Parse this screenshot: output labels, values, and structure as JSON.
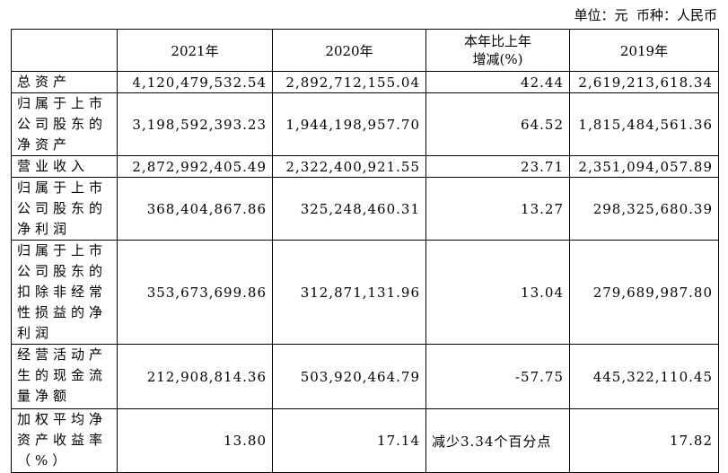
{
  "unit": "单位：元  币种：人民币",
  "table": {
    "header": [
      "",
      "2021年",
      "2020年",
      "本年比上年增减(%)",
      "2019年"
    ],
    "rows": [
      [
        "总资产",
        "4,120,479,532.54",
        "2,892,712,155.04",
        "42.44",
        "2,619,213,618.34"
      ],
      [
        "归属于上市公司股东的净资产",
        "3,198,592,393.23",
        "1,944,198,957.70",
        "64.52",
        "1,815,484,561.36"
      ],
      [
        "营业收入",
        "2,872,992,405.49",
        "2,322,400,921.55",
        "23.71",
        "2,351,094,057.89"
      ],
      [
        "归属于上市公司股东的净利润",
        "368,404,867.86",
        "325,248,460.31",
        "13.27",
        "298,325,680.39"
      ],
      [
        "归属于上市公司股东的扣除非经常性损益的净利润",
        "353,673,699.86",
        "312,871,131.96",
        "13.04",
        "279,689,987.80"
      ],
      [
        "经营活动产生的现金流量净额",
        "212,908,814.36",
        "503,920,464.79",
        "-57.75",
        "445,322,110.45"
      ],
      [
        "加权平均净资产收益率（%）",
        "13.80",
        "17.14",
        "减少3.34个百分点",
        "17.82"
      ]
    ]
  }
}
